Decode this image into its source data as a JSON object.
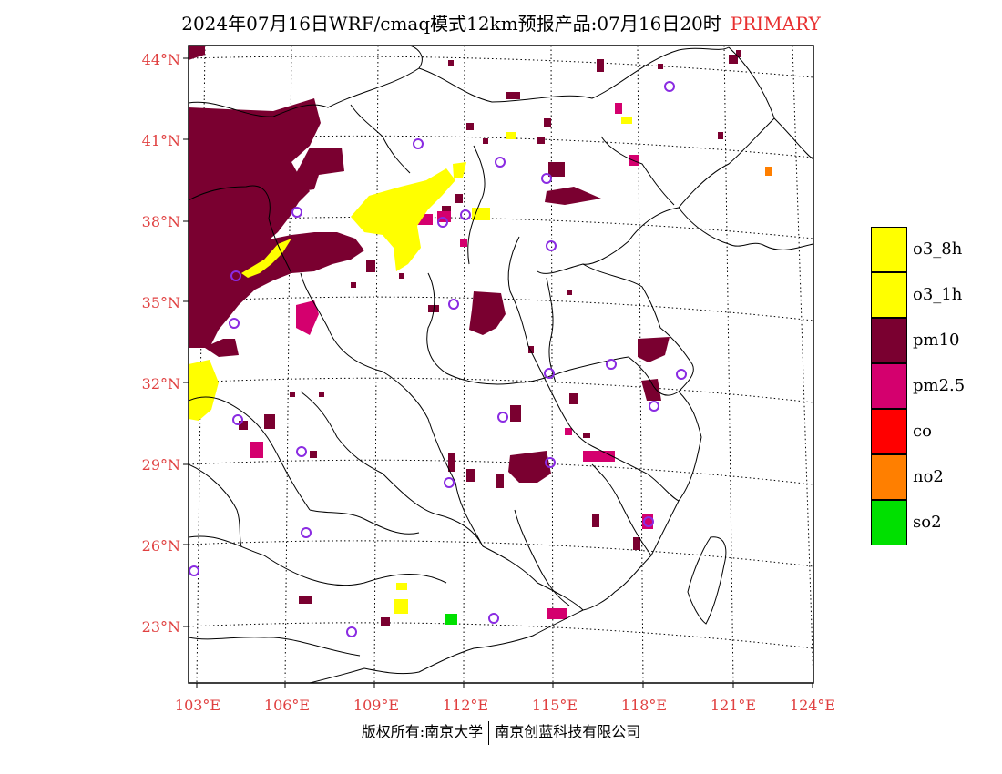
{
  "header": {
    "title": "2024年07月16日WRF/cmaq模式12km预报产品:07月16日20时",
    "tag": "PRIMARY"
  },
  "axes": {
    "lat_labels": [
      "44°N",
      "41°N",
      "38°N",
      "35°N",
      "32°N",
      "29°N",
      "26°N",
      "23°N"
    ],
    "lon_labels": [
      "103°E",
      "106°E",
      "109°E",
      "112°E",
      "115°E",
      "118°E",
      "121°E",
      "124°E"
    ]
  },
  "legend": {
    "items": [
      {
        "label": "o3_8h",
        "color": "#ffff00"
      },
      {
        "label": "o3_1h",
        "color": "#ffff00"
      },
      {
        "label": "pm10",
        "color": "#7a0030"
      },
      {
        "label": "pm2.5",
        "color": "#d4006e"
      },
      {
        "label": "co",
        "color": "#ff0000"
      },
      {
        "label": "no2",
        "color": "#ff7f00"
      },
      {
        "label": "so2",
        "color": "#00e000"
      }
    ]
  },
  "footer": {
    "left": "版权所有:南京大学",
    "right": "南京创蓝科技有限公司"
  },
  "colors": {
    "pm10": "#7a0030",
    "pm25": "#d4006e",
    "o3": "#ffff00",
    "so2": "#00e000",
    "no2": "#ff7f00",
    "station": "#8a2be2",
    "label": "#e04040"
  }
}
